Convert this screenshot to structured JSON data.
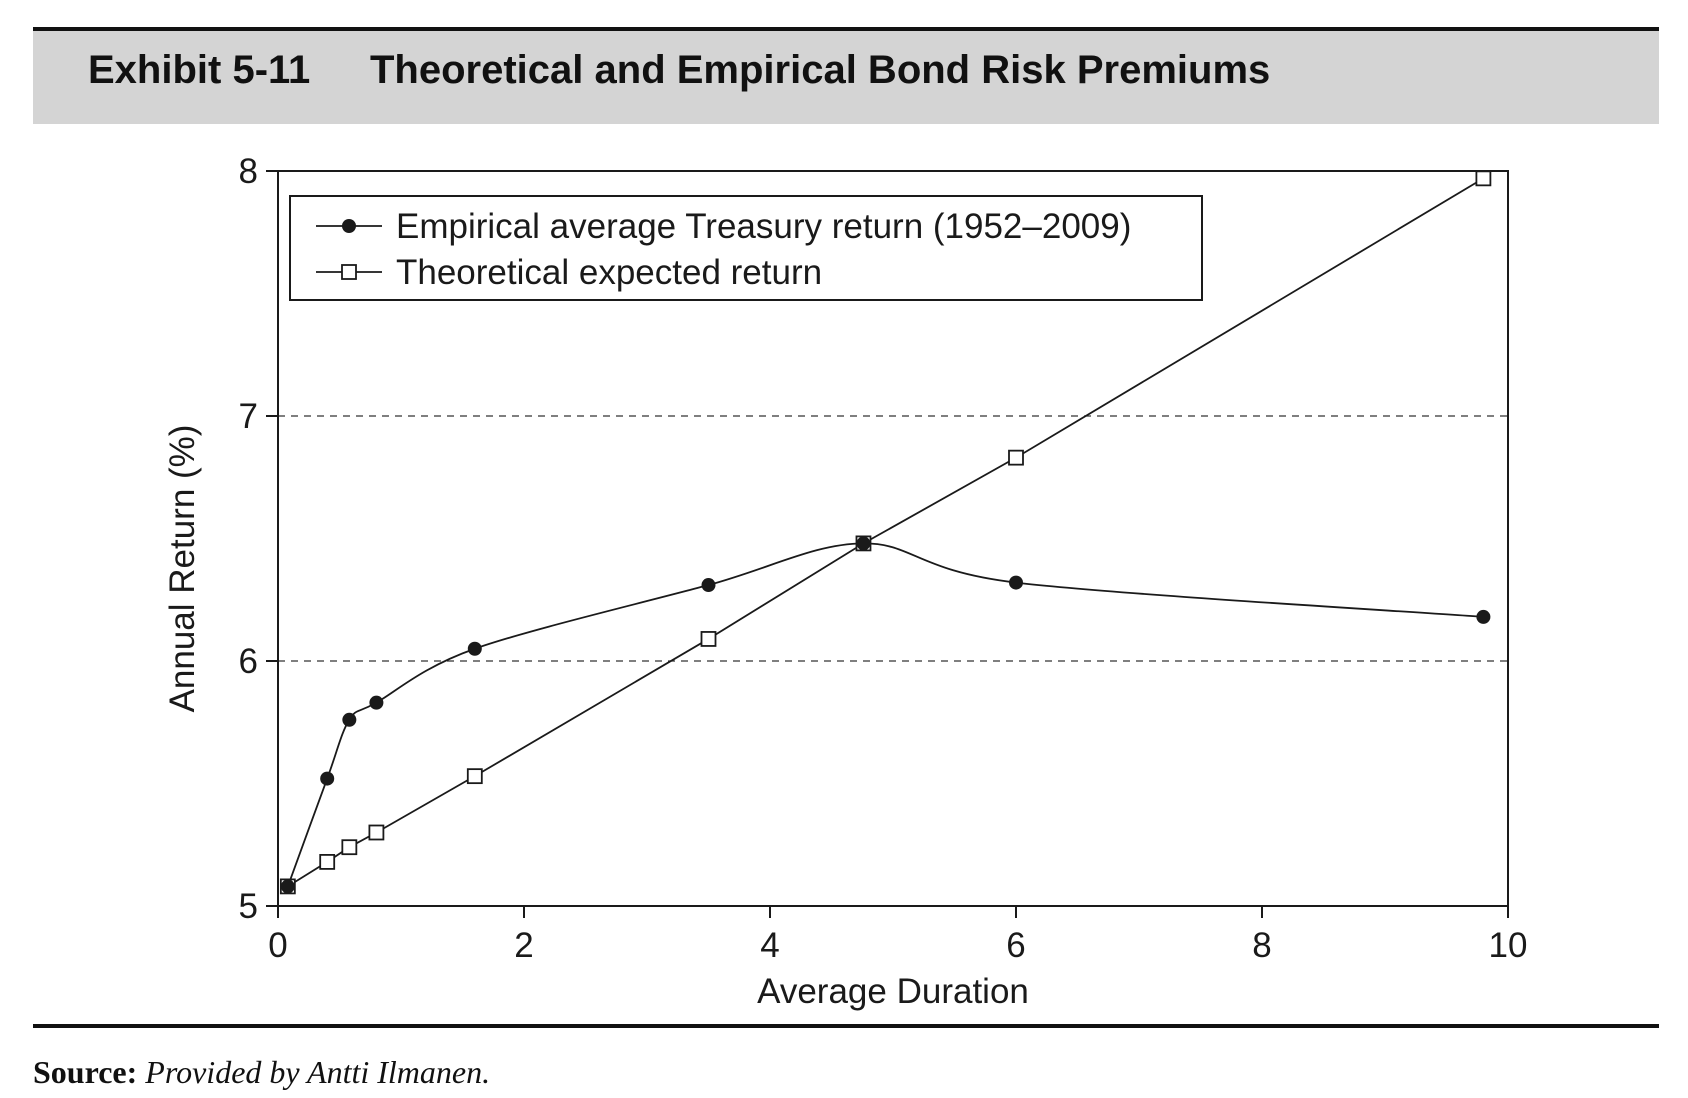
{
  "header": {
    "exhibit": "Exhibit 5-11",
    "title": "Theoretical and Empirical Bond Risk Premiums"
  },
  "source": {
    "label": "Source:",
    "text": "Provided by Antti Ilmanen."
  },
  "chart_data": {
    "type": "line",
    "title": "Theoretical and Empirical Bond Risk Premiums",
    "xlabel": "Average Duration",
    "ylabel": "Annual Return (%)",
    "xlim": [
      0,
      10
    ],
    "ylim": [
      5,
      8
    ],
    "xticks": [
      0,
      2,
      4,
      6,
      8,
      10
    ],
    "yticks": [
      5,
      6,
      7,
      8
    ],
    "grid": "horizontal dashed at 6 and 7",
    "legend": "top-left",
    "series": [
      {
        "name": "Empirical average Treasury return (1952–2009)",
        "marker": "filled-circle",
        "x": [
          0.08,
          0.4,
          0.58,
          0.8,
          1.6,
          3.5,
          4.76,
          6.0,
          9.8
        ],
        "values": [
          5.08,
          5.52,
          5.76,
          5.83,
          6.05,
          6.31,
          6.48,
          6.32,
          6.18
        ]
      },
      {
        "name": "Theoretical expected return",
        "marker": "open-square",
        "x": [
          0.08,
          0.4,
          0.58,
          0.8,
          1.6,
          3.5,
          4.76,
          6.0,
          9.8
        ],
        "values": [
          5.08,
          5.18,
          5.24,
          5.3,
          5.53,
          6.09,
          6.48,
          6.83,
          7.97
        ]
      }
    ]
  }
}
